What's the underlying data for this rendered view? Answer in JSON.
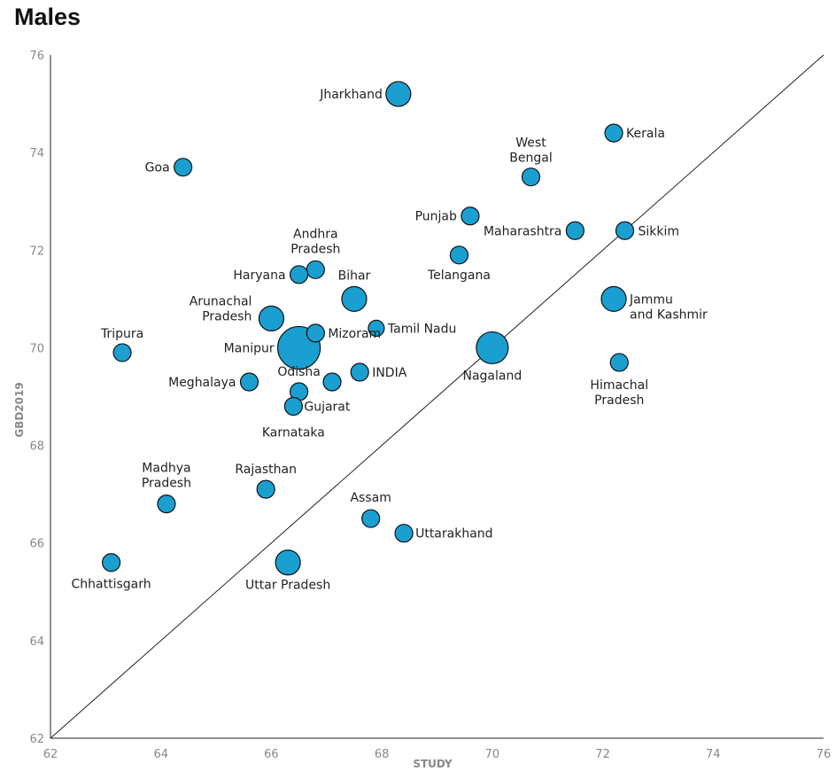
{
  "chart_data": {
    "type": "scatter",
    "title": "Males",
    "xlabel": "STUDY",
    "ylabel": "GBD2019",
    "xlim": [
      62,
      76
    ],
    "ylim": [
      62,
      76
    ],
    "xticks": [
      "62",
      "64",
      "66",
      "68",
      "70",
      "72",
      "74",
      "76"
    ],
    "yticks": [
      "62",
      "64",
      "66",
      "68",
      "70",
      "72",
      "74",
      "76"
    ],
    "reference_line": "y = x",
    "grid": false,
    "marker_color": "#1a9fd0",
    "marker_edge": "#111111",
    "points": [
      {
        "label": "Jharkhand",
        "x": 68.3,
        "y": 75.2,
        "size": "medium"
      },
      {
        "label": "Kerala",
        "x": 72.2,
        "y": 74.4,
        "size": "small"
      },
      {
        "label": "West Bengal",
        "x": 70.7,
        "y": 73.5,
        "size": "small"
      },
      {
        "label": "Goa",
        "x": 64.4,
        "y": 73.7,
        "size": "small"
      },
      {
        "label": "Punjab",
        "x": 69.6,
        "y": 72.7,
        "size": "small"
      },
      {
        "label": "Maharashtra",
        "x": 71.5,
        "y": 72.4,
        "size": "small"
      },
      {
        "label": "Sikkim",
        "x": 72.4,
        "y": 72.4,
        "size": "small"
      },
      {
        "label": "Andhra Pradesh",
        "x": 66.8,
        "y": 71.6,
        "size": "small"
      },
      {
        "label": "Haryana",
        "x": 66.5,
        "y": 71.5,
        "size": "small"
      },
      {
        "label": "Telangana",
        "x": 69.4,
        "y": 71.9,
        "size": "small"
      },
      {
        "label": "Bihar",
        "x": 67.5,
        "y": 71.0,
        "size": "medium"
      },
      {
        "label": "Jammu and Kashmir",
        "x": 72.2,
        "y": 71.0,
        "size": "medium"
      },
      {
        "label": "Arunachal Pradesh",
        "x": 66.0,
        "y": 70.6,
        "size": "medium"
      },
      {
        "label": "Tamil Nadu",
        "x": 67.9,
        "y": 70.4,
        "size": "tiny"
      },
      {
        "label": "Mizoram",
        "x": 66.8,
        "y": 70.3,
        "size": "small"
      },
      {
        "label": "Manipur",
        "x": 66.5,
        "y": 70.0,
        "size": "xlarge"
      },
      {
        "label": "Nagaland",
        "x": 70.0,
        "y": 70.0,
        "size": "large"
      },
      {
        "label": "Tripura",
        "x": 63.3,
        "y": 69.9,
        "size": "small"
      },
      {
        "label": "Himachal Pradesh",
        "x": 72.3,
        "y": 69.7,
        "size": "small"
      },
      {
        "label": "Odisha",
        "x": 66.5,
        "y": 69.1,
        "size": "small"
      },
      {
        "label": "INDIA",
        "x": 67.6,
        "y": 69.5,
        "size": "small"
      },
      {
        "label": "Meghalaya",
        "x": 65.6,
        "y": 69.3,
        "size": "small"
      },
      {
        "label": "",
        "x": 67.1,
        "y": 69.3,
        "size": "small"
      },
      {
        "label": "Gujarat",
        "x": 66.4,
        "y": 68.8,
        "size": "small"
      },
      {
        "label": "Karnataka",
        "x": 66.4,
        "y": 68.8,
        "size": "none"
      },
      {
        "label": "Madhya Pradesh",
        "x": 64.1,
        "y": 66.8,
        "size": "small"
      },
      {
        "label": "Rajasthan",
        "x": 65.9,
        "y": 67.1,
        "size": "small"
      },
      {
        "label": "Assam",
        "x": 67.8,
        "y": 66.5,
        "size": "small"
      },
      {
        "label": "Uttarakhand",
        "x": 68.4,
        "y": 66.2,
        "size": "small"
      },
      {
        "label": "Chhattisgarh",
        "x": 63.1,
        "y": 65.6,
        "size": "small"
      },
      {
        "label": "Uttar Pradesh",
        "x": 66.3,
        "y": 65.6,
        "size": "medium"
      }
    ]
  }
}
